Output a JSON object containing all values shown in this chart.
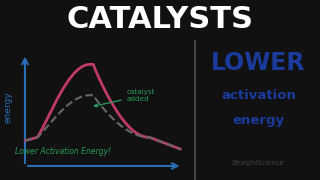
{
  "title": "CATALYSTS",
  "title_bg": "#111111",
  "title_color": "#ffffff",
  "right_panel_bg": "#ffffff",
  "right_title": "LOWER",
  "right_sub1": "activation",
  "right_sub2": "energy",
  "right_text_color": "#1a3a9c",
  "brand": "StraightScience",
  "brand_color": "#444444",
  "left_panel_bg": "#f0ebe0",
  "curve_color": "#c0396b",
  "catalyst_color": "#666666",
  "axis_color": "#2a6eb5",
  "energy_label_color": "#2a6eb5",
  "lower_ae_color": "#2a9c5a",
  "catalyst_label_color": "#2a9c5a",
  "divider_color": "#555555"
}
